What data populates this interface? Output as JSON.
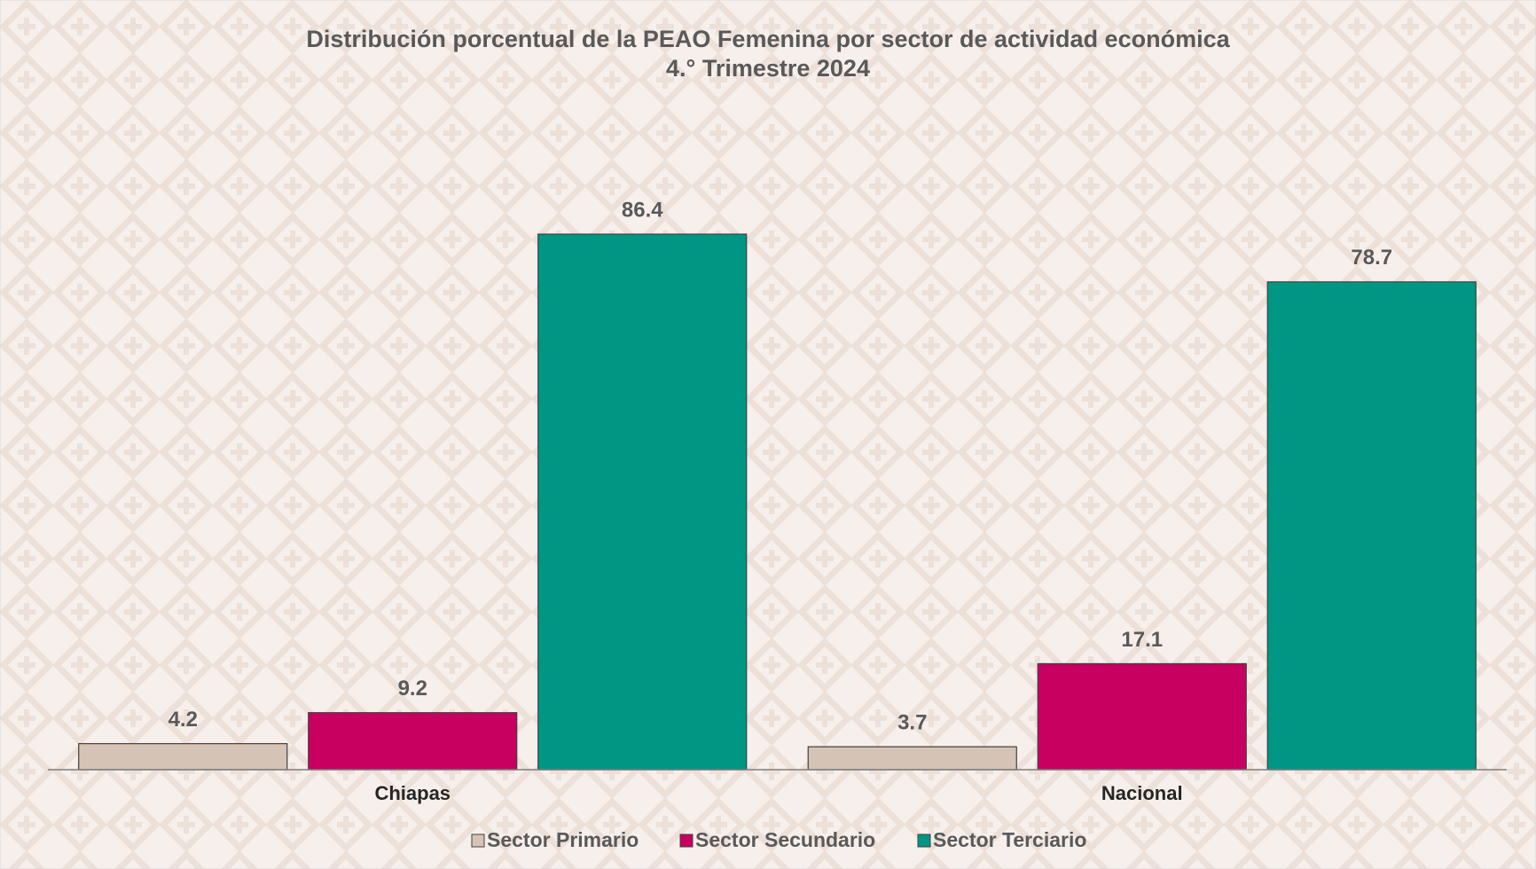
{
  "chart_data": {
    "type": "bar",
    "title": "Distribución porcentual de la PEAO Femenina por sector de actividad económica",
    "subtitle": "4.° Trimestre 2024",
    "categories": [
      "Chiapas",
      "Nacional"
    ],
    "series": [
      {
        "name": "Sector Primario",
        "color": "#d5c4b5",
        "values": [
          4.2,
          3.7
        ]
      },
      {
        "name": "Sector Secundario",
        "color": "#c8005f",
        "values": [
          9.2,
          17.1
        ]
      },
      {
        "name": "Sector Terciario",
        "color": "#009684",
        "values": [
          86.4,
          78.7
        ]
      }
    ],
    "ylim": [
      0,
      100
    ]
  }
}
